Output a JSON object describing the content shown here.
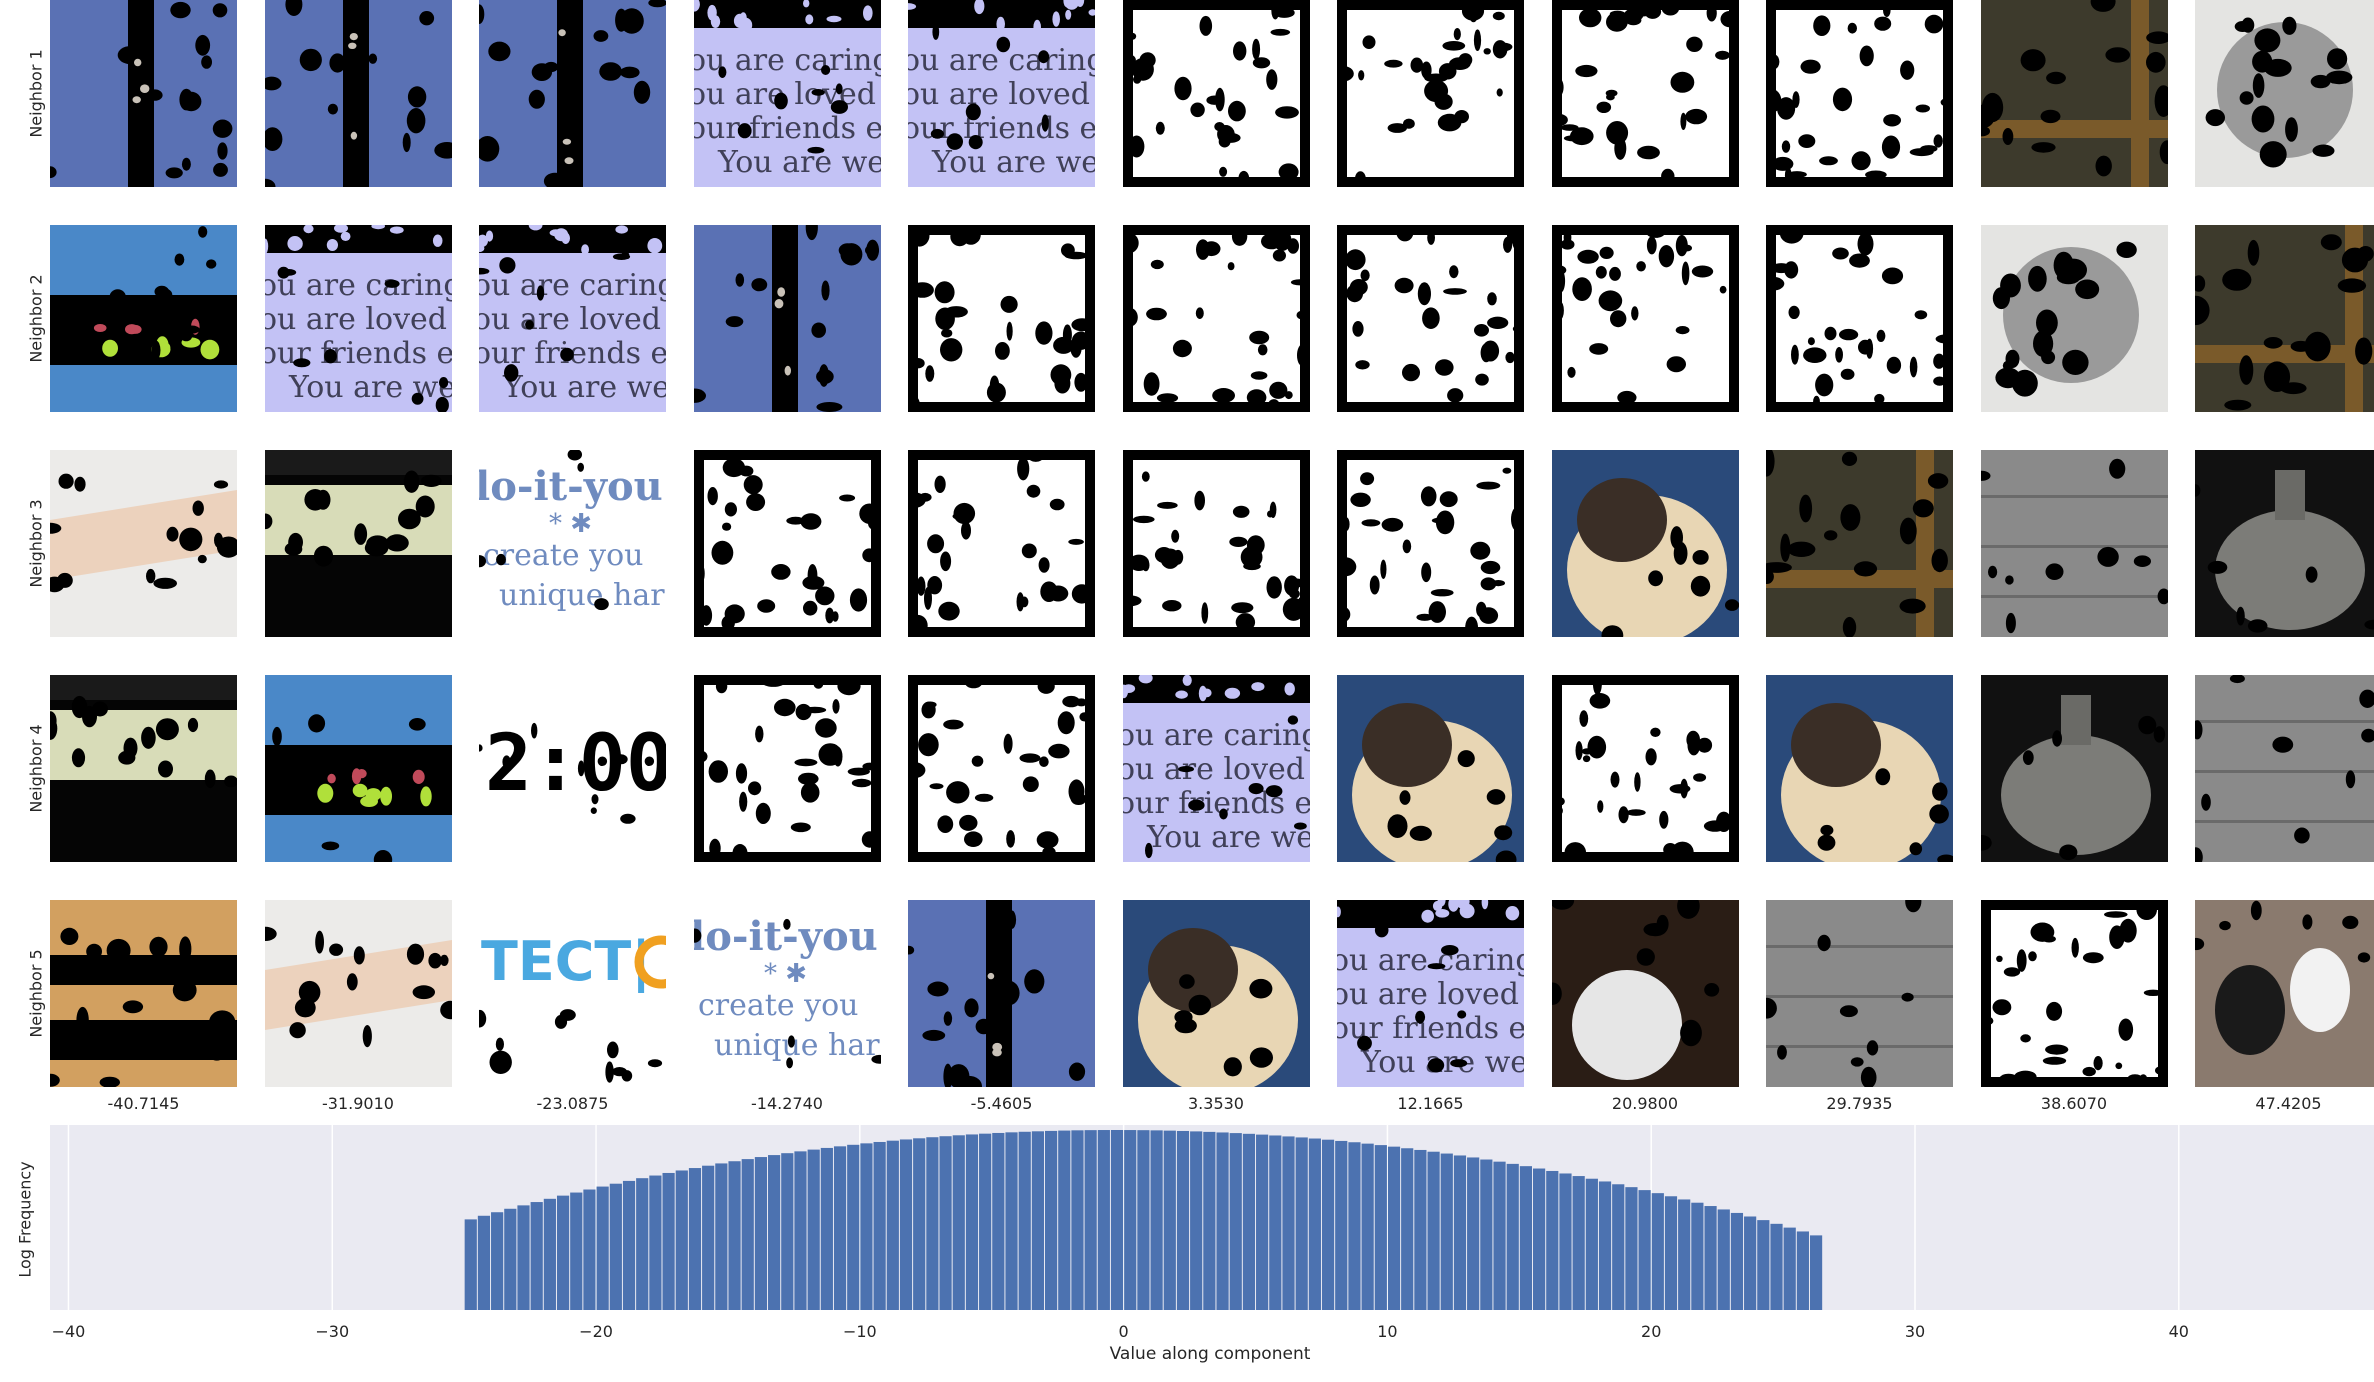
{
  "row_labels": [
    "Neighbor 1",
    "Neighbor 2",
    "Neighbor 3",
    "Neighbor 4",
    "Neighbor 5"
  ],
  "column_values": [
    "-40.7145",
    "-31.9010",
    "-23.0875",
    "-14.2740",
    "-5.4605",
    "3.3530",
    "12.1665",
    "20.9800",
    "29.7935",
    "38.6070",
    "47.4205"
  ],
  "neighbor_grid": [
    [
      "blue-stripe",
      "blue-stripe",
      "blue-stripe",
      "text-lavender",
      "text-lavender",
      "white-noise",
      "white-noise",
      "white-noise",
      "white-noise",
      "wood-window",
      "gray-ball"
    ],
    [
      "sky-stripe",
      "text-lavender",
      "text-lavender",
      "blue-stripe",
      "white-noise",
      "white-noise",
      "white-noise",
      "white-noise",
      "white-noise",
      "gray-ball",
      "wood-window"
    ],
    [
      "beige-bar",
      "dark-band",
      "handmade-text",
      "white-noise",
      "white-noise",
      "white-noise",
      "white-noise",
      "pug",
      "wood-window",
      "gray-panel",
      "metal-pot"
    ],
    [
      "dark-band",
      "sky-stripe",
      "digital-clock",
      "white-noise",
      "white-noise",
      "text-lavender",
      "pug",
      "white-noise",
      "pug",
      "metal-pot",
      "gray-panel"
    ],
    [
      "wood-layers",
      "beige-bar",
      "tect-logo",
      "handmade-text",
      "blue-stripe",
      "pug",
      "text-lavender",
      "golf-ball",
      "gray-panel",
      "white-noise",
      "dogs"
    ]
  ],
  "chart_data": {
    "type": "bar",
    "xlabel": "Value along component",
    "ylabel": "Log Frequency",
    "xlim": [
      -40.7,
      47.4
    ],
    "xticks": [
      -40,
      -30,
      -20,
      -10,
      0,
      10,
      20,
      30,
      40
    ],
    "xtick_labels": [
      "−40",
      "−30",
      "−20",
      "−10",
      "0",
      "10",
      "20",
      "30",
      "40"
    ],
    "grid": true,
    "bar_color": "#4c72b0",
    "background_color": "#eaeaf2",
    "bin_width": 0.5,
    "bins": {
      "start": -25,
      "end": 26.5
    },
    "distribution_note_mean": -0.3,
    "distribution_note_sigma": 6.6
  },
  "colors": {
    "blue": "#5a71b4",
    "lavender": "#c3c2f5",
    "ink": "#404058"
  }
}
